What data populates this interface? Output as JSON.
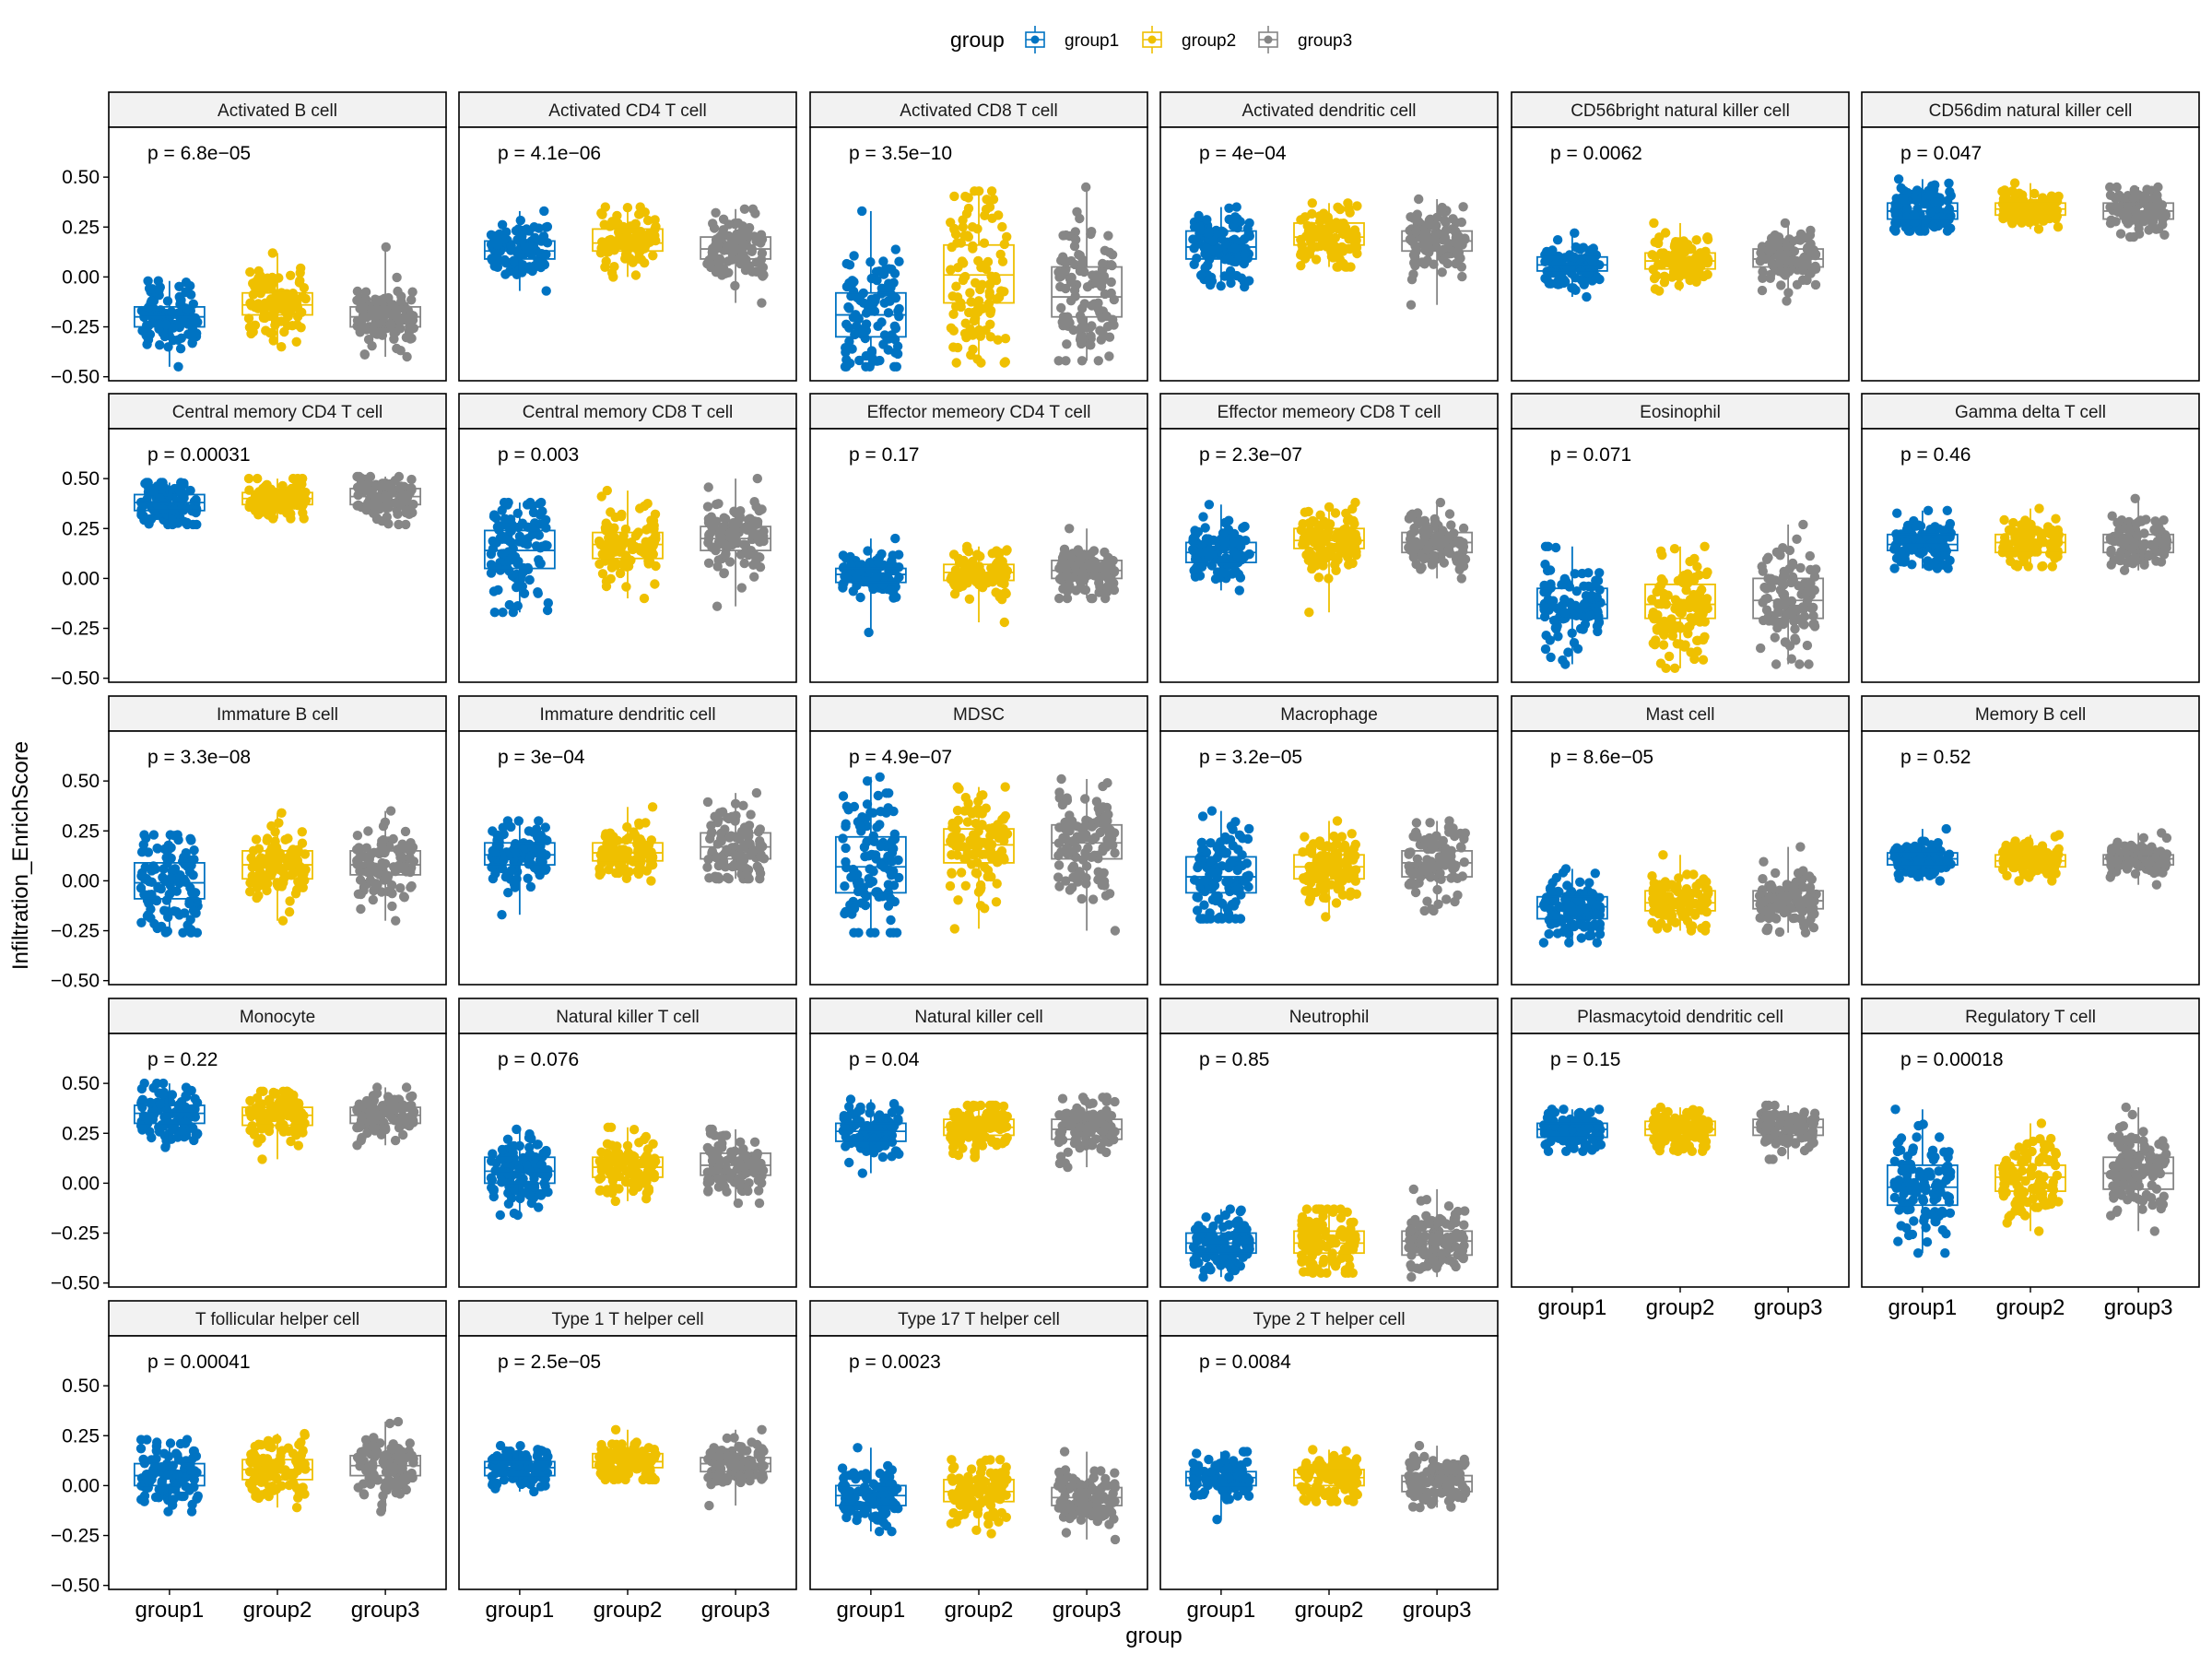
{
  "chart_data": {
    "type": "boxplot",
    "xlabel": "group",
    "ylabel": "Infiltration_EnrichScore",
    "ylim": [
      -0.52,
      0.75
    ],
    "yticks": [
      -0.5,
      -0.25,
      0.0,
      0.25,
      0.5
    ],
    "ytick_labels": [
      "−0.50",
      "−0.25",
      "0.00",
      "0.25",
      "0.50"
    ],
    "legend": {
      "title": "group",
      "placement": "top",
      "entries": [
        "group1",
        "group2",
        "group3"
      ]
    },
    "colors": {
      "group1": "#0073c2",
      "group2": "#efc000",
      "group3": "#868686"
    },
    "categories": [
      "group1",
      "group2",
      "group3"
    ],
    "panels": [
      {
        "title": "Activated B cell",
        "p": "p = 6.8e−05",
        "boxes": [
          {
            "q1": -0.25,
            "med": -0.2,
            "q3": -0.15,
            "min": -0.45,
            "max": -0.02
          },
          {
            "q1": -0.19,
            "med": -0.14,
            "q3": -0.08,
            "min": -0.35,
            "max": 0.12
          },
          {
            "q1": -0.25,
            "med": -0.2,
            "q3": -0.15,
            "min": -0.4,
            "max": 0.15
          }
        ]
      },
      {
        "title": "Activated CD4 T cell",
        "p": "p = 4.1e−06",
        "boxes": [
          {
            "q1": 0.09,
            "med": 0.13,
            "q3": 0.18,
            "min": -0.07,
            "max": 0.33
          },
          {
            "q1": 0.13,
            "med": 0.17,
            "q3": 0.24,
            "min": 0.0,
            "max": 0.35
          },
          {
            "q1": 0.09,
            "med": 0.14,
            "q3": 0.2,
            "min": -0.13,
            "max": 0.34
          }
        ]
      },
      {
        "title": "Activated CD8 T cell",
        "p": "p = 3.5e−10",
        "boxes": [
          {
            "q1": -0.3,
            "med": -0.19,
            "q3": -0.08,
            "min": -0.45,
            "max": 0.33
          },
          {
            "q1": -0.13,
            "med": 0.01,
            "q3": 0.16,
            "min": -0.43,
            "max": 0.43
          },
          {
            "q1": -0.2,
            "med": -0.1,
            "q3": 0.05,
            "min": -0.42,
            "max": 0.45
          }
        ]
      },
      {
        "title": "Activated dendritic cell",
        "p": "p = 4e−04",
        "boxes": [
          {
            "q1": 0.09,
            "med": 0.15,
            "q3": 0.23,
            "min": -0.05,
            "max": 0.35
          },
          {
            "q1": 0.16,
            "med": 0.2,
            "q3": 0.27,
            "min": 0.05,
            "max": 0.37
          },
          {
            "q1": 0.13,
            "med": 0.18,
            "q3": 0.23,
            "min": -0.14,
            "max": 0.39
          }
        ]
      },
      {
        "title": "CD56bright natural killer cell",
        "p": "p = 0.0062",
        "boxes": [
          {
            "q1": 0.03,
            "med": 0.06,
            "q3": 0.1,
            "min": -0.1,
            "max": 0.22
          },
          {
            "q1": 0.04,
            "med": 0.08,
            "q3": 0.12,
            "min": -0.07,
            "max": 0.27
          },
          {
            "q1": 0.05,
            "med": 0.09,
            "q3": 0.14,
            "min": -0.12,
            "max": 0.27
          }
        ]
      },
      {
        "title": "CD56dim natural killer cell",
        "p": "p = 0.047",
        "boxes": [
          {
            "q1": 0.29,
            "med": 0.33,
            "q3": 0.37,
            "min": 0.23,
            "max": 0.49
          },
          {
            "q1": 0.31,
            "med": 0.34,
            "q3": 0.37,
            "min": 0.24,
            "max": 0.47
          },
          {
            "q1": 0.29,
            "med": 0.33,
            "q3": 0.37,
            "min": 0.2,
            "max": 0.45
          }
        ]
      },
      {
        "title": "Central memory CD4 T cell",
        "p": "p = 0.00031",
        "boxes": [
          {
            "q1": 0.34,
            "med": 0.38,
            "q3": 0.42,
            "min": 0.27,
            "max": 0.48
          },
          {
            "q1": 0.37,
            "med": 0.4,
            "q3": 0.43,
            "min": 0.3,
            "max": 0.5
          },
          {
            "q1": 0.37,
            "med": 0.41,
            "q3": 0.45,
            "min": 0.27,
            "max": 0.51
          }
        ]
      },
      {
        "title": "Central memory CD8 T cell",
        "p": "p = 0.003",
        "boxes": [
          {
            "q1": 0.05,
            "med": 0.14,
            "q3": 0.24,
            "min": -0.17,
            "max": 0.38
          },
          {
            "q1": 0.1,
            "med": 0.17,
            "q3": 0.23,
            "min": -0.1,
            "max": 0.44
          },
          {
            "q1": 0.14,
            "med": 0.2,
            "q3": 0.26,
            "min": -0.14,
            "max": 0.5
          }
        ]
      },
      {
        "title": "Effector memeory CD4 T cell",
        "p": "p = 0.17",
        "boxes": [
          {
            "q1": -0.02,
            "med": 0.02,
            "q3": 0.05,
            "min": -0.27,
            "max": 0.2
          },
          {
            "q1": -0.01,
            "med": 0.03,
            "q3": 0.07,
            "min": -0.22,
            "max": 0.16
          },
          {
            "q1": 0.0,
            "med": 0.04,
            "q3": 0.09,
            "min": -0.1,
            "max": 0.25
          }
        ]
      },
      {
        "title": "Effector memeory CD8 T cell",
        "p": "p = 2.3e−07",
        "boxes": [
          {
            "q1": 0.08,
            "med": 0.13,
            "q3": 0.18,
            "min": -0.06,
            "max": 0.37
          },
          {
            "q1": 0.15,
            "med": 0.19,
            "q3": 0.25,
            "min": -0.17,
            "max": 0.38
          },
          {
            "q1": 0.13,
            "med": 0.18,
            "q3": 0.23,
            "min": 0.0,
            "max": 0.38
          }
        ]
      },
      {
        "title": "Eosinophil",
        "p": "p = 0.071",
        "boxes": [
          {
            "q1": -0.2,
            "med": -0.13,
            "q3": -0.05,
            "min": -0.43,
            "max": 0.16
          },
          {
            "q1": -0.2,
            "med": -0.13,
            "q3": -0.03,
            "min": -0.45,
            "max": 0.16
          },
          {
            "q1": -0.2,
            "med": -0.11,
            "q3": 0.0,
            "min": -0.43,
            "max": 0.27
          }
        ]
      },
      {
        "title": "Gamma delta T cell",
        "p": "p = 0.46",
        "boxes": [
          {
            "q1": 0.14,
            "med": 0.17,
            "q3": 0.22,
            "min": 0.05,
            "max": 0.34
          },
          {
            "q1": 0.13,
            "med": 0.18,
            "q3": 0.22,
            "min": 0.06,
            "max": 0.35
          },
          {
            "q1": 0.13,
            "med": 0.18,
            "q3": 0.22,
            "min": 0.04,
            "max": 0.4
          }
        ]
      },
      {
        "title": "Immature  B cell",
        "p": "p = 3.3e−08",
        "boxes": [
          {
            "q1": -0.09,
            "med": -0.01,
            "q3": 0.09,
            "min": -0.26,
            "max": 0.23
          },
          {
            "q1": 0.01,
            "med": 0.08,
            "q3": 0.15,
            "min": -0.2,
            "max": 0.34
          },
          {
            "q1": 0.03,
            "med": 0.08,
            "q3": 0.15,
            "min": -0.2,
            "max": 0.35
          }
        ]
      },
      {
        "title": "Immature dendritic cell",
        "p": "p = 3e−04",
        "boxes": [
          {
            "q1": 0.08,
            "med": 0.13,
            "q3": 0.19,
            "min": -0.17,
            "max": 0.3
          },
          {
            "q1": 0.1,
            "med": 0.14,
            "q3": 0.19,
            "min": 0.0,
            "max": 0.37
          },
          {
            "q1": 0.11,
            "med": 0.17,
            "q3": 0.24,
            "min": 0.01,
            "max": 0.44
          }
        ]
      },
      {
        "title": "MDSC",
        "p": "p = 4.9e−07",
        "boxes": [
          {
            "q1": -0.06,
            "med": 0.07,
            "q3": 0.22,
            "min": -0.26,
            "max": 0.52
          },
          {
            "q1": 0.09,
            "med": 0.18,
            "q3": 0.26,
            "min": -0.24,
            "max": 0.47
          },
          {
            "q1": 0.11,
            "med": 0.19,
            "q3": 0.28,
            "min": -0.25,
            "max": 0.51
          }
        ]
      },
      {
        "title": "Macrophage",
        "p": "p = 3.2e−05",
        "boxes": [
          {
            "q1": -0.06,
            "med": 0.02,
            "q3": 0.12,
            "min": -0.19,
            "max": 0.35
          },
          {
            "q1": 0.01,
            "med": 0.07,
            "q3": 0.13,
            "min": -0.18,
            "max": 0.3
          },
          {
            "q1": 0.02,
            "med": 0.09,
            "q3": 0.15,
            "min": -0.15,
            "max": 0.3
          }
        ]
      },
      {
        "title": "Mast cell",
        "p": "p = 8.6e−05",
        "boxes": [
          {
            "q1": -0.19,
            "med": -0.13,
            "q3": -0.08,
            "min": -0.31,
            "max": 0.06
          },
          {
            "q1": -0.15,
            "med": -0.11,
            "q3": -0.05,
            "min": -0.25,
            "max": 0.13
          },
          {
            "q1": -0.14,
            "med": -0.1,
            "q3": -0.05,
            "min": -0.26,
            "max": 0.17
          }
        ]
      },
      {
        "title": "Memory B cell",
        "p": "p = 0.52",
        "boxes": [
          {
            "q1": 0.08,
            "med": 0.11,
            "q3": 0.14,
            "min": 0.0,
            "max": 0.26
          },
          {
            "q1": 0.07,
            "med": 0.1,
            "q3": 0.13,
            "min": 0.0,
            "max": 0.23
          },
          {
            "q1": 0.08,
            "med": 0.11,
            "q3": 0.13,
            "min": -0.02,
            "max": 0.24
          }
        ]
      },
      {
        "title": "Monocyte",
        "p": "p = 0.22",
        "boxes": [
          {
            "q1": 0.3,
            "med": 0.35,
            "q3": 0.39,
            "min": 0.18,
            "max": 0.5
          },
          {
            "q1": 0.29,
            "med": 0.34,
            "q3": 0.38,
            "min": 0.12,
            "max": 0.46
          },
          {
            "q1": 0.3,
            "med": 0.34,
            "q3": 0.38,
            "min": 0.19,
            "max": 0.48
          }
        ]
      },
      {
        "title": "Natural killer T cell",
        "p": "p = 0.076",
        "boxes": [
          {
            "q1": 0.0,
            "med": 0.06,
            "q3": 0.13,
            "min": -0.16,
            "max": 0.27
          },
          {
            "q1": 0.03,
            "med": 0.08,
            "q3": 0.13,
            "min": -0.09,
            "max": 0.28
          },
          {
            "q1": 0.04,
            "med": 0.09,
            "q3": 0.15,
            "min": -0.1,
            "max": 0.27
          }
        ]
      },
      {
        "title": "Natural killer cell",
        "p": "p = 0.04",
        "boxes": [
          {
            "q1": 0.21,
            "med": 0.26,
            "q3": 0.3,
            "min": 0.05,
            "max": 0.42
          },
          {
            "q1": 0.24,
            "med": 0.28,
            "q3": 0.32,
            "min": 0.13,
            "max": 0.39
          },
          {
            "q1": 0.22,
            "med": 0.27,
            "q3": 0.32,
            "min": 0.08,
            "max": 0.43
          }
        ]
      },
      {
        "title": "Neutrophil",
        "p": "p = 0.85",
        "boxes": [
          {
            "q1": -0.35,
            "med": -0.3,
            "q3": -0.25,
            "min": -0.47,
            "max": -0.13
          },
          {
            "q1": -0.35,
            "med": -0.3,
            "q3": -0.24,
            "min": -0.45,
            "max": -0.13
          },
          {
            "q1": -0.36,
            "med": -0.29,
            "q3": -0.24,
            "min": -0.47,
            "max": -0.03
          }
        ]
      },
      {
        "title": "Plasmacytoid dendritic cell",
        "p": "p = 0.15",
        "boxes": [
          {
            "q1": 0.23,
            "med": 0.27,
            "q3": 0.3,
            "min": 0.16,
            "max": 0.37
          },
          {
            "q1": 0.24,
            "med": 0.27,
            "q3": 0.31,
            "min": 0.16,
            "max": 0.38
          },
          {
            "q1": 0.24,
            "med": 0.28,
            "q3": 0.32,
            "min": 0.12,
            "max": 0.39
          }
        ]
      },
      {
        "title": "Regulatory T cell",
        "p": "p = 0.00018",
        "boxes": [
          {
            "q1": -0.11,
            "med": -0.02,
            "q3": 0.09,
            "min": -0.35,
            "max": 0.37
          },
          {
            "q1": -0.04,
            "med": 0.03,
            "q3": 0.09,
            "min": -0.24,
            "max": 0.3
          },
          {
            "q1": -0.03,
            "med": 0.05,
            "q3": 0.13,
            "min": -0.24,
            "max": 0.38
          }
        ]
      },
      {
        "title": "T follicular helper cell",
        "p": "p = 0.00041",
        "boxes": [
          {
            "q1": 0.0,
            "med": 0.05,
            "q3": 0.11,
            "min": -0.13,
            "max": 0.23
          },
          {
            "q1": 0.03,
            "med": 0.08,
            "q3": 0.13,
            "min": -0.11,
            "max": 0.26
          },
          {
            "q1": 0.05,
            "med": 0.1,
            "q3": 0.15,
            "min": -0.13,
            "max": 0.32
          }
        ]
      },
      {
        "title": "Type 1 T helper cell",
        "p": "p = 2.5e−05",
        "boxes": [
          {
            "q1": 0.05,
            "med": 0.09,
            "q3": 0.12,
            "min": -0.03,
            "max": 0.2
          },
          {
            "q1": 0.09,
            "med": 0.12,
            "q3": 0.16,
            "min": 0.03,
            "max": 0.28
          },
          {
            "q1": 0.07,
            "med": 0.11,
            "q3": 0.14,
            "min": -0.1,
            "max": 0.28
          }
        ]
      },
      {
        "title": "Type 17 T helper cell",
        "p": "p = 0.0023",
        "boxes": [
          {
            "q1": -0.1,
            "med": -0.05,
            "q3": 0.0,
            "min": -0.23,
            "max": 0.19
          },
          {
            "q1": -0.08,
            "med": -0.03,
            "q3": 0.03,
            "min": -0.24,
            "max": 0.13
          },
          {
            "q1": -0.1,
            "med": -0.06,
            "q3": -0.01,
            "min": -0.27,
            "max": 0.17
          }
        ]
      },
      {
        "title": "Type 2 T helper cell",
        "p": "p = 0.0084",
        "boxes": [
          {
            "q1": 0.0,
            "med": 0.04,
            "q3": 0.07,
            "min": -0.17,
            "max": 0.17
          },
          {
            "q1": 0.0,
            "med": 0.04,
            "q3": 0.08,
            "min": -0.08,
            "max": 0.18
          },
          {
            "q1": -0.03,
            "med": 0.02,
            "q3": 0.05,
            "min": -0.11,
            "max": 0.2
          }
        ]
      }
    ]
  }
}
